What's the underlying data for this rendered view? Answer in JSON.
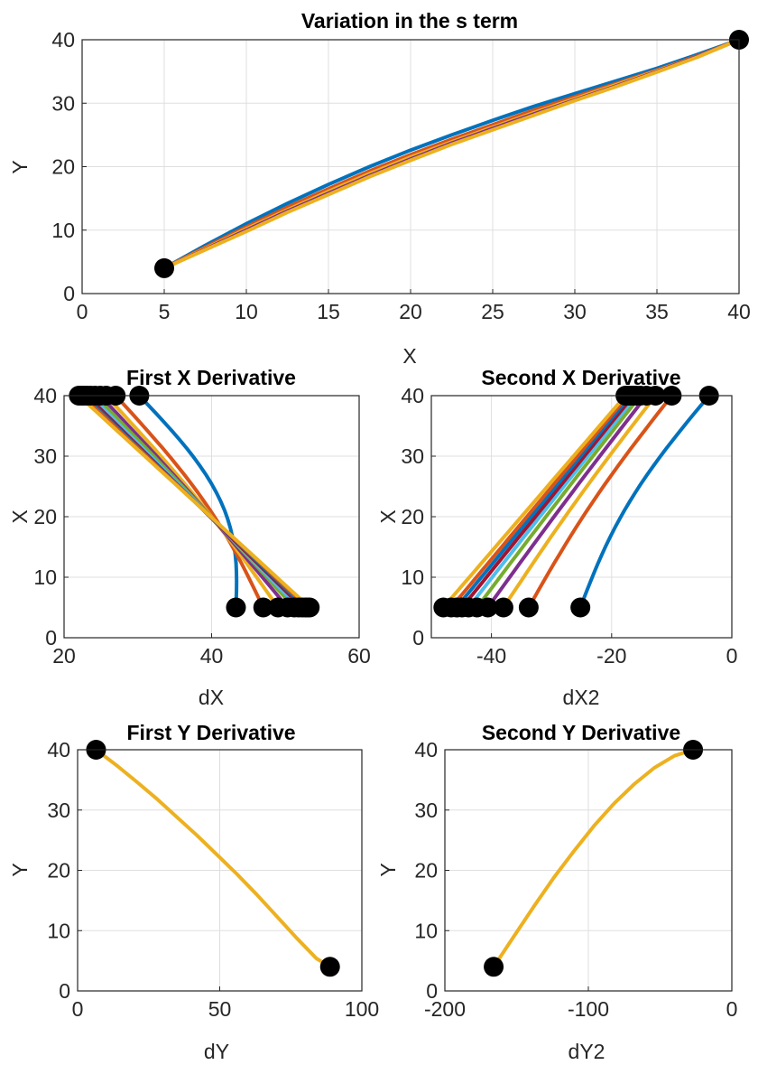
{
  "colors": {
    "palette": [
      "#0072BD",
      "#D95319",
      "#EDB120",
      "#7E2F8E",
      "#77AC30",
      "#4DBEEE",
      "#A2142F",
      "#0072BD",
      "#D95319",
      "#EDB120"
    ],
    "marker": "#000000",
    "grid": "#dfdfdf",
    "axis": "#262626"
  },
  "chart_data": [
    {
      "id": "s-term",
      "type": "line",
      "title": "Variation in the s term",
      "xlabel": "X",
      "ylabel": "Y",
      "xlim": [
        0,
        40
      ],
      "ylim": [
        0,
        40
      ],
      "xticks": [
        0,
        5,
        10,
        15,
        20,
        25,
        30,
        35,
        40
      ],
      "yticks": [
        0,
        10,
        20,
        30,
        40
      ],
      "grid": true,
      "endpoints": [
        [
          5,
          4
        ],
        [
          40,
          40
        ]
      ],
      "series": [
        {
          "color_index": 0,
          "points": [
            [
              5,
              4
            ],
            [
              7.5,
              7.6
            ],
            [
              10,
              11.0
            ],
            [
              12.5,
              14.2
            ],
            [
              15,
              17.2
            ],
            [
              17.5,
              20.0
            ],
            [
              20,
              22.6
            ],
            [
              22.5,
              25.0
            ],
            [
              25,
              27.3
            ],
            [
              27.5,
              29.5
            ],
            [
              30,
              31.5
            ],
            [
              32.5,
              33.5
            ],
            [
              35,
              35.5
            ],
            [
              37.5,
              37.7
            ],
            [
              40,
              40
            ]
          ]
        },
        {
          "color_index": 1,
          "points": [
            [
              5,
              4
            ],
            [
              7.5,
              7.3
            ],
            [
              10,
              10.5
            ],
            [
              12.5,
              13.6
            ],
            [
              15,
              16.5
            ],
            [
              17.5,
              19.3
            ],
            [
              20,
              21.9
            ],
            [
              22.5,
              24.3
            ],
            [
              25,
              26.6
            ],
            [
              27.5,
              28.9
            ],
            [
              30,
              31.0
            ],
            [
              32.5,
              33.1
            ],
            [
              35,
              35.2
            ],
            [
              37.5,
              37.5
            ],
            [
              40,
              40
            ]
          ]
        },
        {
          "color_index": 2,
          "points": [
            [
              5,
              4
            ],
            [
              7.5,
              7.1
            ],
            [
              10,
              10.2
            ],
            [
              12.5,
              13.2
            ],
            [
              15,
              16.1
            ],
            [
              17.5,
              18.9
            ],
            [
              20,
              21.5
            ],
            [
              22.5,
              23.9
            ],
            [
              25,
              26.2
            ],
            [
              27.5,
              28.5
            ],
            [
              30,
              30.7
            ],
            [
              32.5,
              32.9
            ],
            [
              35,
              35.1
            ],
            [
              37.5,
              37.4
            ],
            [
              40,
              40
            ]
          ]
        },
        {
          "color_index": 3,
          "points": [
            [
              5,
              4
            ],
            [
              7.5,
              7.0
            ],
            [
              10,
              10.0
            ],
            [
              12.5,
              13.0
            ],
            [
              15,
              15.8
            ],
            [
              17.5,
              18.6
            ],
            [
              20,
              21.2
            ],
            [
              22.5,
              23.7
            ],
            [
              25,
              26.0
            ],
            [
              27.5,
              28.3
            ],
            [
              30,
              30.5
            ],
            [
              32.5,
              32.7
            ],
            [
              35,
              35.0
            ],
            [
              37.5,
              37.4
            ],
            [
              40,
              40
            ]
          ]
        },
        {
          "color_index": 9,
          "points": [
            [
              5,
              4
            ],
            [
              7.5,
              6.9
            ],
            [
              10,
              9.8
            ],
            [
              12.5,
              12.8
            ],
            [
              15,
              15.6
            ],
            [
              17.5,
              18.4
            ],
            [
              20,
              21.0
            ],
            [
              22.5,
              23.5
            ],
            [
              25,
              25.8
            ],
            [
              27.5,
              28.1
            ],
            [
              30,
              30.4
            ],
            [
              32.5,
              32.6
            ],
            [
              35,
              34.9
            ],
            [
              37.5,
              37.3
            ],
            [
              40,
              40
            ]
          ]
        }
      ]
    },
    {
      "id": "dx",
      "type": "line",
      "title": "First X Derivative",
      "xlabel": "dX",
      "ylabel": "X",
      "xlim": [
        20,
        60
      ],
      "ylim": [
        0,
        40
      ],
      "xticks": [
        20,
        40,
        60
      ],
      "yticks": [
        0,
        10,
        20,
        30,
        40
      ],
      "grid": true,
      "series": [
        {
          "color_index": 0,
          "start": [
            43.3,
            5
          ],
          "end": [
            30.2,
            40
          ],
          "bow": 4.5
        },
        {
          "color_index": 1,
          "start": [
            47.0,
            5
          ],
          "end": [
            27.0,
            40
          ],
          "bow": 2.0
        },
        {
          "color_index": 2,
          "start": [
            49.0,
            5
          ],
          "end": [
            25.7,
            40
          ],
          "bow": 1.0
        },
        {
          "color_index": 3,
          "start": [
            50.3,
            5
          ],
          "end": [
            24.9,
            40
          ],
          "bow": 0.5
        },
        {
          "color_index": 4,
          "start": [
            51.2,
            5
          ],
          "end": [
            24.2,
            40
          ],
          "bow": 0.3
        },
        {
          "color_index": 5,
          "start": [
            51.8,
            5
          ],
          "end": [
            23.6,
            40
          ],
          "bow": 0.1
        },
        {
          "color_index": 6,
          "start": [
            52.3,
            5
          ],
          "end": [
            23.1,
            40
          ],
          "bow": 0.0
        },
        {
          "color_index": 7,
          "start": [
            52.7,
            5
          ],
          "end": [
            22.7,
            40
          ],
          "bow": 0.0
        },
        {
          "color_index": 8,
          "start": [
            53.0,
            5
          ],
          "end": [
            22.4,
            40
          ],
          "bow": 0.0
        },
        {
          "color_index": 9,
          "start": [
            53.3,
            5
          ],
          "end": [
            22.0,
            40
          ],
          "bow": 0.0
        }
      ]
    },
    {
      "id": "dx2",
      "type": "line",
      "title": "Second X Derivative",
      "xlabel": "dX2",
      "ylabel": "X",
      "xlim": [
        -50,
        0
      ],
      "ylim": [
        0,
        40
      ],
      "xticks": [
        -40,
        -20,
        0
      ],
      "yticks": [
        0,
        10,
        20,
        30,
        40
      ],
      "grid": true,
      "series": [
        {
          "color_index": 0,
          "start": [
            -25.2,
            5
          ],
          "end": [
            -3.8,
            40
          ],
          "bow": -2.5
        },
        {
          "color_index": 1,
          "start": [
            -33.8,
            5
          ],
          "end": [
            -10.0,
            40
          ],
          "bow": -1.2
        },
        {
          "color_index": 2,
          "start": [
            -38.0,
            5
          ],
          "end": [
            -12.7,
            40
          ],
          "bow": -0.6
        },
        {
          "color_index": 3,
          "start": [
            -40.6,
            5
          ],
          "end": [
            -14.2,
            40
          ],
          "bow": -0.3
        },
        {
          "color_index": 4,
          "start": [
            -42.4,
            5
          ],
          "end": [
            -15.2,
            40
          ],
          "bow": -0.2
        },
        {
          "color_index": 5,
          "start": [
            -43.8,
            5
          ],
          "end": [
            -15.9,
            40
          ],
          "bow": -0.1
        },
        {
          "color_index": 6,
          "start": [
            -44.9,
            5
          ],
          "end": [
            -16.4,
            40
          ],
          "bow": 0.0
        },
        {
          "color_index": 7,
          "start": [
            -45.8,
            5
          ],
          "end": [
            -16.9,
            40
          ],
          "bow": 0.0
        },
        {
          "color_index": 8,
          "start": [
            -46.7,
            5
          ],
          "end": [
            -17.3,
            40
          ],
          "bow": 0.0
        },
        {
          "color_index": 9,
          "start": [
            -48.0,
            5
          ],
          "end": [
            -17.7,
            40
          ],
          "bow": 0.0
        }
      ]
    },
    {
      "id": "dy",
      "type": "line",
      "title": "First Y Derivative",
      "xlabel": "dY",
      "ylabel": "Y",
      "xlim": [
        0,
        100
      ],
      "ylim": [
        0,
        40
      ],
      "xticks": [
        0,
        50,
        100
      ],
      "yticks": [
        0,
        10,
        20,
        30,
        40
      ],
      "grid": true,
      "endpoints": [
        [
          6.5,
          40
        ],
        [
          88.8,
          4
        ]
      ],
      "series": [
        {
          "color_index": 9,
          "points": [
            [
              6.5,
              40
            ],
            [
              14,
              37.3
            ],
            [
              21,
              34.6
            ],
            [
              28,
              31.8
            ],
            [
              35,
              28.8
            ],
            [
              42,
              25.8
            ],
            [
              49,
              22.6
            ],
            [
              56,
              19.4
            ],
            [
              63,
              16.0
            ],
            [
              70,
              12.4
            ],
            [
              77,
              8.8
            ],
            [
              84,
              5.4
            ],
            [
              88.8,
              4
            ]
          ]
        }
      ]
    },
    {
      "id": "dy2",
      "type": "line",
      "title": "Second Y Derivative",
      "xlabel": "dY2",
      "ylabel": "Y",
      "xlim": [
        -200,
        0
      ],
      "ylim": [
        0,
        40
      ],
      "xticks": [
        -200,
        -100,
        0
      ],
      "yticks": [
        0,
        10,
        20,
        30,
        40
      ],
      "grid": true,
      "endpoints": [
        [
          -166,
          4
        ],
        [
          -27,
          40
        ]
      ],
      "series": [
        {
          "color_index": 9,
          "points": [
            [
              -166,
              4
            ],
            [
              -152,
              9.0
            ],
            [
              -138,
              14.0
            ],
            [
              -124,
              18.8
            ],
            [
              -110,
              23.2
            ],
            [
              -96,
              27.4
            ],
            [
              -82,
              31.1
            ],
            [
              -68,
              34.3
            ],
            [
              -54,
              37.0
            ],
            [
              -40,
              39.0
            ],
            [
              -27,
              40
            ]
          ]
        }
      ]
    }
  ]
}
